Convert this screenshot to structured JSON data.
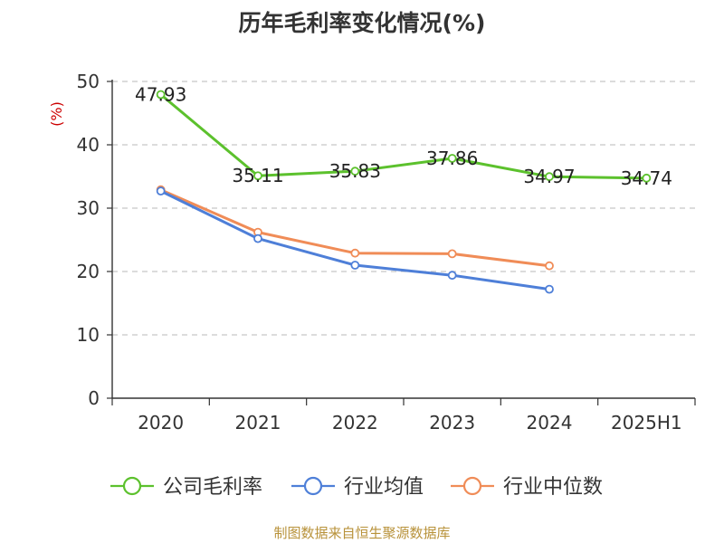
{
  "chart_data": {
    "type": "line",
    "title": "历年毛利率变化情况(%)",
    "ylabel": "(%)",
    "categories": [
      "2020",
      "2021",
      "2022",
      "2023",
      "2024",
      "2025H1"
    ],
    "ylim": [
      0,
      50
    ],
    "yticks": [
      "0",
      "10",
      "20",
      "30",
      "40",
      "50"
    ],
    "grid": "horizontal-dashed",
    "legend_position": "bottom",
    "series": [
      {
        "name": "公司毛利率",
        "color": "#5cc12d",
        "values": [
          47.93,
          35.11,
          35.83,
          37.86,
          34.97,
          34.74
        ],
        "labels": [
          "47.93",
          "35.11",
          "35.83",
          "37.86",
          "34.97",
          "34.74"
        ]
      },
      {
        "name": "行业均值",
        "color": "#4e7fd8",
        "values": [
          32.7,
          25.2,
          21.0,
          19.4,
          17.2,
          null
        ]
      },
      {
        "name": "行业中位数",
        "color": "#f08c57",
        "values": [
          32.9,
          26.2,
          22.9,
          22.8,
          20.9,
          null
        ]
      }
    ],
    "source": "制图数据来自恒生聚源数据库"
  }
}
